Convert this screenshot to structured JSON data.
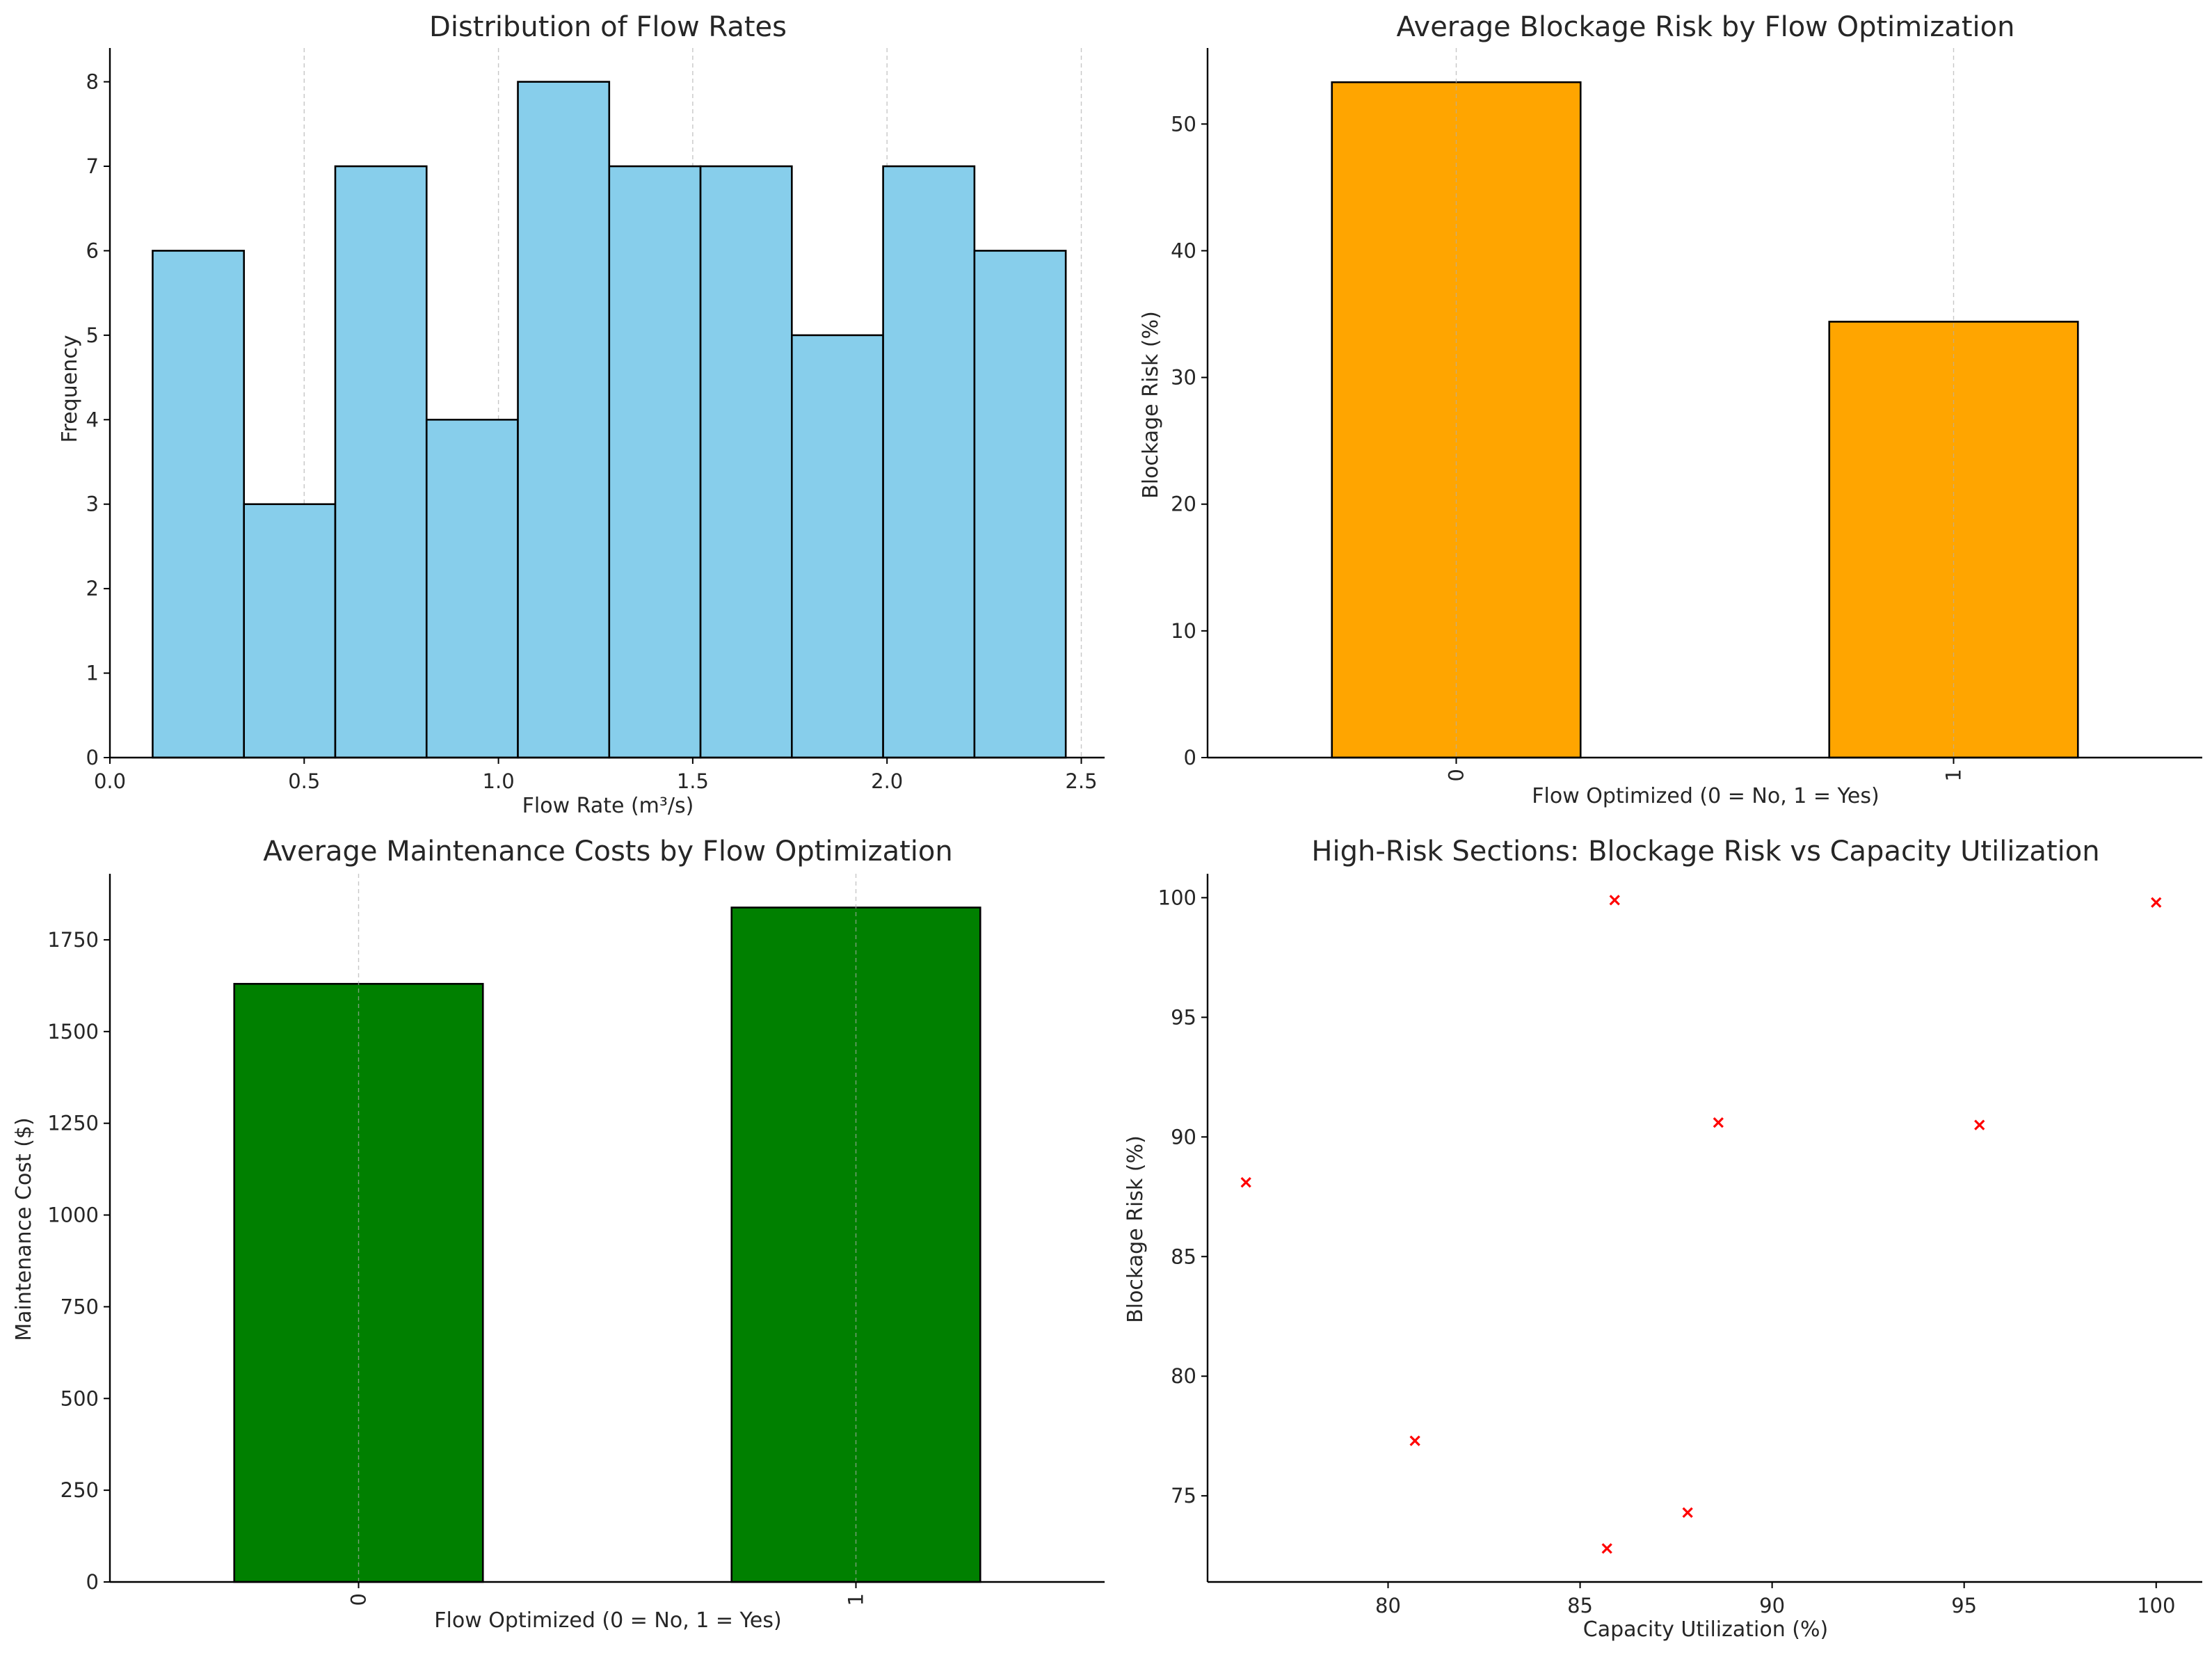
{
  "chart_data": [
    {
      "id": "hist",
      "type": "bar",
      "title": "Distribution of Flow Rates",
      "xlabel": "Flow Rate (m³/s)",
      "ylabel": "Frequency",
      "xlim": [
        0.0,
        2.56
      ],
      "ylim": [
        0,
        8.4
      ],
      "bin_edges": [
        0.11,
        0.345,
        0.58,
        0.815,
        1.05,
        1.285,
        1.52,
        1.755,
        1.99,
        2.225,
        2.46
      ],
      "values": [
        6,
        3,
        7,
        4,
        8,
        7,
        7,
        5,
        7,
        6
      ],
      "xticks": [
        0.0,
        0.5,
        1.0,
        1.5,
        2.0,
        2.5
      ],
      "xtick_labels": [
        "0.0",
        "0.5",
        "1.0",
        "1.5",
        "2.0",
        "2.5"
      ],
      "yticks": [
        0,
        1,
        2,
        3,
        4,
        5,
        6,
        7,
        8
      ],
      "ytick_labels": [
        "0",
        "1",
        "2",
        "3",
        "4",
        "5",
        "6",
        "7",
        "8"
      ],
      "color": "#87CEEB",
      "grid": "x"
    },
    {
      "id": "blockage",
      "type": "bar",
      "title": "Average Blockage Risk by Flow Optimization",
      "xlabel": "Flow Optimized (0 = No, 1 = Yes)",
      "ylabel": "Blockage Risk (%)",
      "categories": [
        "0",
        "1"
      ],
      "values": [
        53.3,
        34.4
      ],
      "ylim": [
        0,
        56
      ],
      "yticks": [
        0,
        10,
        20,
        30,
        40,
        50
      ],
      "ytick_labels": [
        "0",
        "10",
        "20",
        "30",
        "40",
        "50"
      ],
      "color": "#FFA500",
      "grid": "x"
    },
    {
      "id": "maintenance",
      "type": "bar",
      "title": "Average Maintenance Costs by Flow Optimization",
      "xlabel": "Flow Optimized (0 = No, 1 = Yes)",
      "ylabel": "Maintenance Cost ($)",
      "categories": [
        "0",
        "1"
      ],
      "values": [
        1630,
        1838
      ],
      "ylim": [
        0,
        1930
      ],
      "yticks": [
        0,
        250,
        500,
        750,
        1000,
        1250,
        1500,
        1750
      ],
      "ytick_labels": [
        "0",
        "250",
        "500",
        "750",
        "1000",
        "1250",
        "1500",
        "1750"
      ],
      "color": "#008000",
      "grid": "x"
    },
    {
      "id": "scatter",
      "type": "scatter",
      "title": "High-Risk Sections: Blockage Risk vs Capacity Utilization",
      "xlabel": "Capacity Utilization (%)",
      "ylabel": "Blockage Risk (%)",
      "x": [
        76.3,
        80.7,
        85.7,
        85.9,
        87.8,
        88.6,
        95.4,
        100.0
      ],
      "y": [
        88.1,
        77.3,
        72.8,
        99.9,
        74.3,
        90.6,
        90.5,
        99.8
      ],
      "xlim": [
        75.3,
        101.2
      ],
      "ylim": [
        71.4,
        101.0
      ],
      "xticks": [
        80,
        85,
        90,
        95,
        100
      ],
      "xtick_labels": [
        "80",
        "85",
        "90",
        "95",
        "100"
      ],
      "yticks": [
        75,
        80,
        85,
        90,
        95,
        100
      ],
      "ytick_labels": [
        "75",
        "80",
        "85",
        "90",
        "95",
        "100"
      ],
      "color": "#FF0000",
      "marker": "x"
    }
  ]
}
